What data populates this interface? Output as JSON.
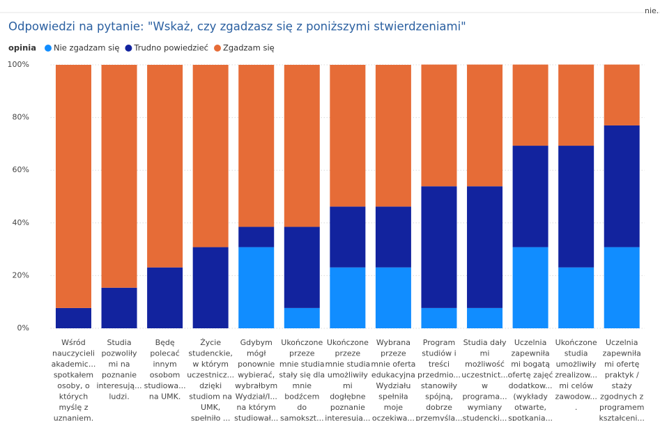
{
  "corner_text": "nie.",
  "chart_data": {
    "type": "stacked_bar",
    "title": "Odpowiedzi na pytanie: \"Wskaż, czy zgadzasz się z poniższymi stwierdzeniami\"",
    "legend_title": "opinia",
    "categories": [
      "Wśród\nnauczycieli\nakademic...\nspotkałem\nosoby, o\nktórych\nmyślę z\nuznaniem.",
      "Studia\npozwoliły\nmi na\npoznanie\ninteresują...\nludzi.",
      "Będę\npolecać\ninnym\nosobom\nstudiowa...\nna UMK.",
      "Życie\nstudenckie,\nw którym\nuczestnicz...\ndzięki\nstudiom na\nUMK,\nspełniło ...",
      "Gdybym\nmógł\nponownie\nwybierać,\nwybrałbym\nWydział/I...\nna którym\nstudiował...",
      "Ukończone\nprzeze\nmnie studia\nstały się dla\nmnie\nbodźcem\ndo\nsamokszt...",
      "Ukończone\nprzeze\nmnie studia\numożliwiły\nmi\ndogłębne\npoznanie\ninteresują...",
      "Wybrana\nprzeze\nmnie oferta\nedukacyjna\nWydziału\nspełniła\nmoje\noczekiwa...",
      "Program\nstudiów i\ntreści\nprzedmio...\nstanowiły\nspójną,\ndobrze\nprzemyśla...",
      "Studia dały\nmi\nmożliwość\nuczestnict...\nw\nprograma...\nwymiany\nstudencki...",
      "Uczelnia\nzapewniła\nmi bogatą\nofertę zajęć\ndodatkow...\n(wykłady\notwarte,\nspotkania...",
      "Ukończone\nstudia\numożliwiły\nzrealizow...\nmi celów\nzawodow...\n.",
      "Uczelnia\nzapewniła\nmi ofertę\npraktyk /\nstaży\nzgodnych z\nprogramem\nkształceni..."
    ],
    "series": [
      {
        "name": "Nie zgadzam się",
        "color": "#118dff",
        "values": [
          0,
          0,
          0,
          0,
          30.8,
          7.7,
          23.1,
          23.1,
          7.7,
          7.7,
          30.8,
          23.1,
          30.8
        ]
      },
      {
        "name": "Trudno powiedzieć",
        "color": "#12239e",
        "values": [
          7.7,
          15.4,
          23.1,
          30.8,
          7.7,
          30.8,
          23.1,
          23.1,
          46.2,
          46.2,
          38.5,
          46.2,
          46.2
        ]
      },
      {
        "name": "Zgadzam się",
        "color": "#e66c37",
        "values": [
          92.3,
          84.6,
          76.9,
          69.2,
          61.5,
          61.5,
          53.8,
          53.8,
          46.2,
          46.2,
          30.8,
          30.8,
          23.1
        ]
      }
    ],
    "ylim": [
      0,
      100
    ],
    "yticks": [
      {
        "value": 0,
        "label": "0%"
      },
      {
        "value": 20,
        "label": "20%"
      },
      {
        "value": 40,
        "label": "40%"
      },
      {
        "value": 60,
        "label": "60%"
      },
      {
        "value": 80,
        "label": "80%"
      },
      {
        "value": 100,
        "label": "100%"
      }
    ],
    "grid": true
  }
}
